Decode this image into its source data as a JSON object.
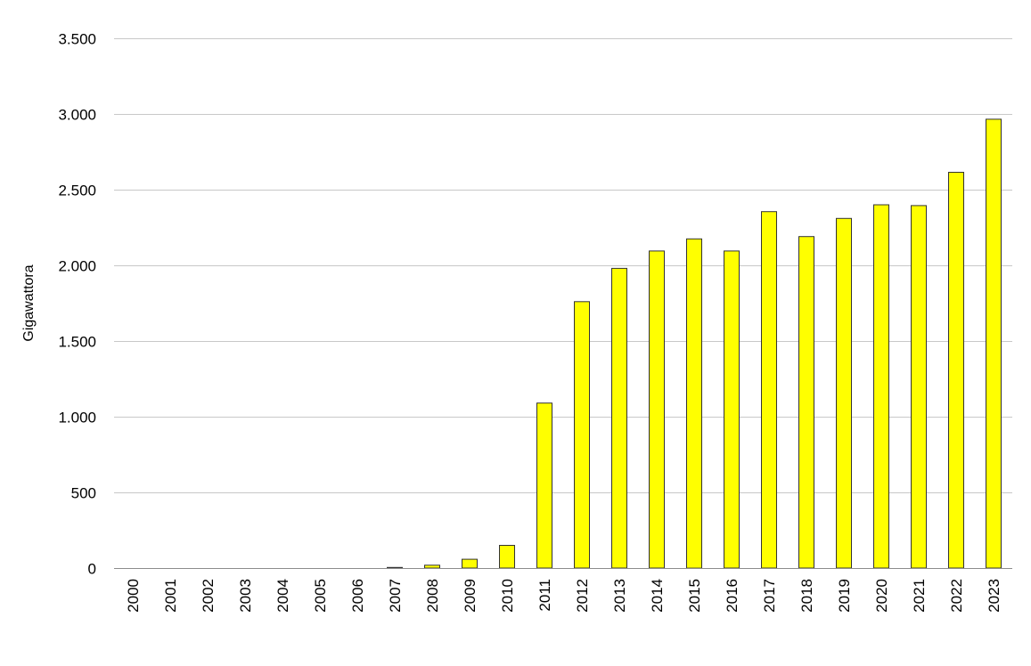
{
  "chart_data": {
    "type": "bar",
    "title": "",
    "xlabel": "",
    "ylabel": "Gigawattora",
    "ylim": [
      0,
      3500
    ],
    "yticks": [
      0,
      500,
      1000,
      1500,
      2000,
      2500,
      3000,
      3500
    ],
    "ytick_labels": [
      "0",
      "500",
      "1.000",
      "1.500",
      "2.000",
      "2.500",
      "3.000",
      "3.500"
    ],
    "grid": "horizontal",
    "legend": "none",
    "bar_color": "#ffff00",
    "bar_edge_color": "#333333",
    "categories": [
      "2000",
      "2001",
      "2002",
      "2003",
      "2004",
      "2005",
      "2006",
      "2007",
      "2008",
      "2009",
      "2010",
      "2011",
      "2012",
      "2013",
      "2014",
      "2015",
      "2016",
      "2017",
      "2018",
      "2019",
      "2020",
      "2021",
      "2022",
      "2023"
    ],
    "values": [
      0,
      0,
      0,
      0,
      0,
      0,
      0,
      4,
      19,
      58,
      150,
      1090,
      1760,
      1980,
      2095,
      2175,
      2095,
      2355,
      2190,
      2310,
      2400,
      2395,
      2615,
      2965
    ]
  }
}
